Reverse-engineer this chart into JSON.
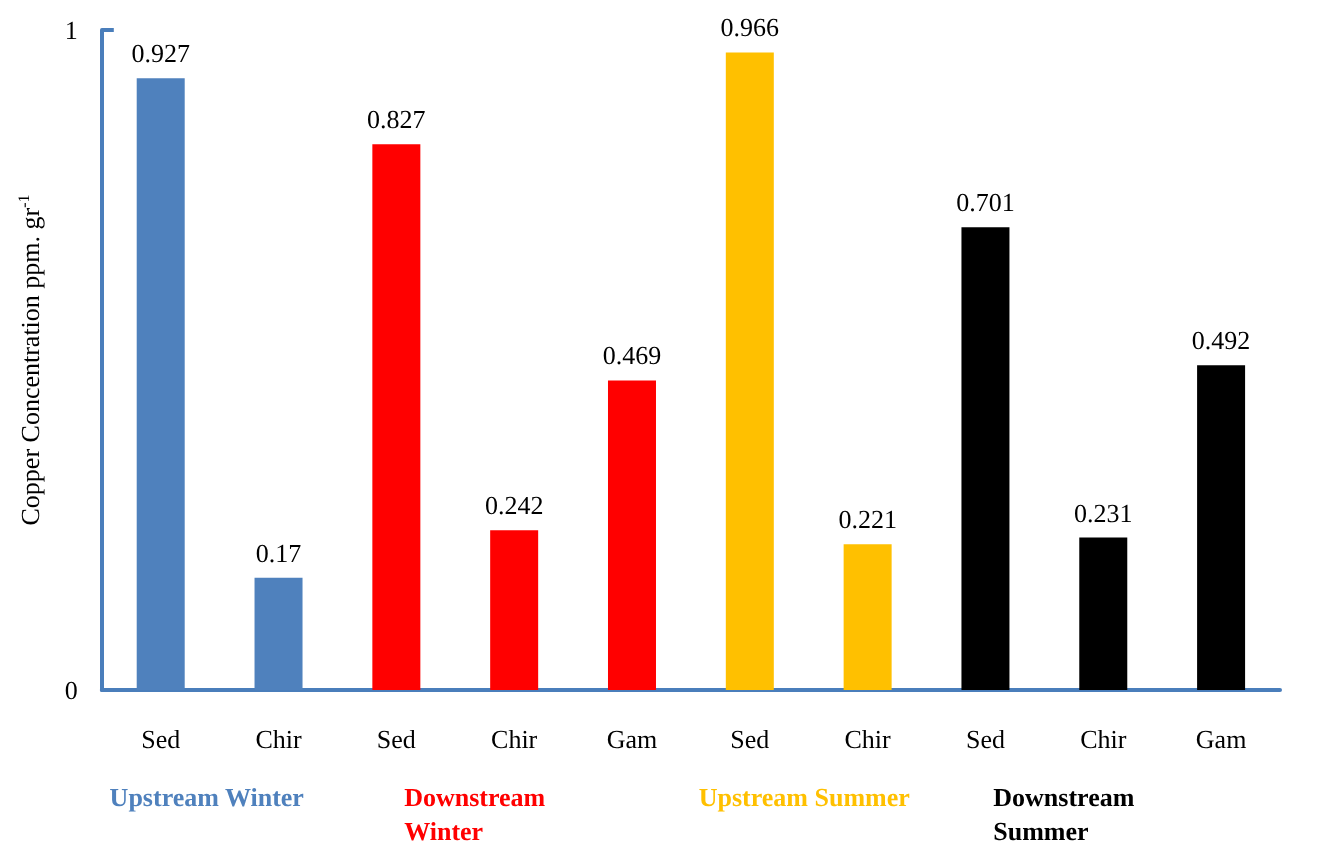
{
  "chart_data": {
    "type": "bar",
    "ylabel": "Copper Concentration ppm. gr$^{-1}$",
    "categories": [
      "Sed",
      "Chir",
      "Sed",
      "Chir",
      "Gam",
      "Sed",
      "Chir",
      "Sed",
      "Chir",
      "Gam"
    ],
    "series": [
      {
        "name": "Upstream Winter",
        "color": "#4f81bd",
        "values": [
          0.927,
          0.17,
          null,
          null,
          null,
          null,
          null,
          null,
          null,
          null
        ]
      },
      {
        "name": "Downstream Winter",
        "color": "#ff0000",
        "values": [
          null,
          null,
          0.827,
          0.242,
          0.469,
          null,
          null,
          null,
          null,
          null
        ]
      },
      {
        "name": "Upstream Summer",
        "color": "#ffc000",
        "values": [
          null,
          null,
          null,
          null,
          null,
          0.966,
          0.221,
          null,
          null,
          null
        ]
      },
      {
        "name": "Downstream Summer",
        "color": "#000000",
        "values": [
          null,
          null,
          null,
          null,
          null,
          null,
          null,
          0.701,
          0.231,
          0.492
        ]
      }
    ],
    "ylim": [
      0,
      1
    ],
    "yticks": [
      0,
      1
    ],
    "grid": false,
    "legend": false,
    "data_labels": true
  }
}
